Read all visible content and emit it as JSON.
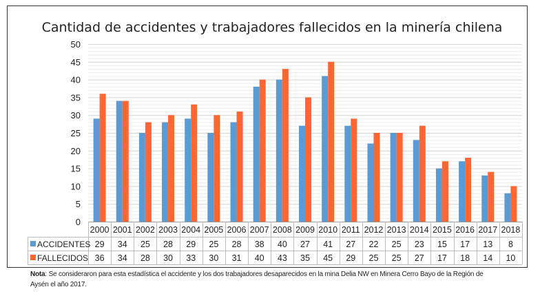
{
  "chart_data": {
    "type": "bar",
    "title": "Cantidad de accidentes y trabajadores fallecidos en la minería chilena",
    "categories": [
      "2000",
      "2001",
      "2002",
      "2003",
      "2004",
      "2005",
      "2006",
      "2007",
      "2008",
      "2009",
      "2010",
      "2011",
      "2012",
      "2013",
      "2014",
      "2015",
      "2016",
      "2017",
      "2018"
    ],
    "series": [
      {
        "name": "ACCIDENTES",
        "color": "#5b9bd5",
        "values": [
          29,
          34,
          25,
          28,
          29,
          25,
          28,
          38,
          40,
          27,
          41,
          27,
          22,
          25,
          23,
          15,
          17,
          13,
          8
        ]
      },
      {
        "name": "FALLECIDOS",
        "color": "#ff6633",
        "values": [
          36,
          34,
          28,
          30,
          33,
          30,
          31,
          40,
          43,
          35,
          45,
          29,
          25,
          25,
          27,
          17,
          18,
          14,
          10
        ]
      }
    ],
    "ylim": [
      0,
      50
    ],
    "yticks": [
      "0",
      "5",
      "10",
      "15",
      "20",
      "25",
      "30",
      "35",
      "40",
      "45",
      "50"
    ],
    "grid": true,
    "legend": "data-table",
    "xlabel": "",
    "ylabel": ""
  },
  "note": {
    "label": "Nota",
    "text": ": Se consideraron para esta estadística el accidente y los dos trabajadores desaparecidos en la mina Delia NW en  Minera  Cerro Bayo de la  Región de Aysén el año 2017."
  }
}
